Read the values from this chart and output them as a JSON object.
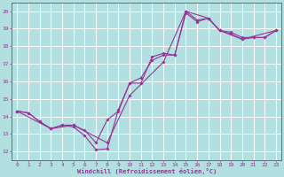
{
  "xlabel": "Windchill (Refroidissement éolien,°C)",
  "xlim": [
    -0.5,
    23.5
  ],
  "ylim": [
    11.5,
    20.5
  ],
  "xticks": [
    0,
    1,
    2,
    3,
    4,
    5,
    6,
    7,
    8,
    9,
    10,
    11,
    12,
    13,
    14,
    15,
    16,
    17,
    18,
    19,
    20,
    21,
    22,
    23
  ],
  "yticks": [
    12,
    13,
    14,
    15,
    16,
    17,
    18,
    19,
    20
  ],
  "background_color": "#b2dfdf",
  "line_color": "#993399",
  "grid_color": "#ffffff",
  "line1_x": [
    0,
    1,
    2,
    3,
    4,
    5,
    6,
    7,
    8,
    9,
    10,
    11,
    12,
    13,
    14,
    15,
    16,
    17,
    18,
    19,
    20,
    21,
    22,
    23
  ],
  "line1_y": [
    14.3,
    14.2,
    13.7,
    13.3,
    13.5,
    13.4,
    12.9,
    12.1,
    12.15,
    14.4,
    15.9,
    15.9,
    17.4,
    17.6,
    17.5,
    20.0,
    19.5,
    19.6,
    18.9,
    18.8,
    18.5,
    18.5,
    18.5,
    18.9
  ],
  "line2_x": [
    0,
    1,
    2,
    3,
    4,
    5,
    6,
    7,
    8,
    9,
    10,
    11,
    12,
    13,
    14,
    15,
    16,
    17,
    18,
    19,
    20,
    21,
    22,
    23
  ],
  "line2_y": [
    14.3,
    14.2,
    13.7,
    13.3,
    13.5,
    13.5,
    13.2,
    12.5,
    13.8,
    14.3,
    15.9,
    16.2,
    17.2,
    17.5,
    17.5,
    19.9,
    19.4,
    19.6,
    18.9,
    18.7,
    18.4,
    18.5,
    18.5,
    18.9
  ],
  "line3_x": [
    0,
    3,
    5,
    8,
    10,
    13,
    15,
    17,
    18,
    20,
    23
  ],
  "line3_y": [
    14.3,
    13.3,
    13.5,
    12.5,
    15.2,
    17.1,
    20.0,
    19.6,
    18.9,
    18.4,
    18.9
  ]
}
